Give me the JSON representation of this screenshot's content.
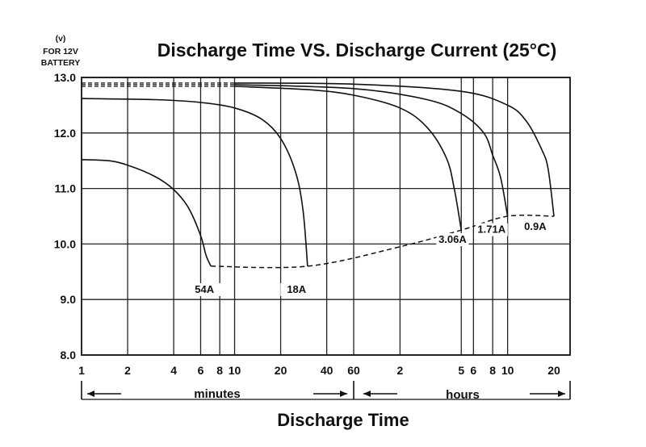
{
  "chart_data": {
    "type": "line",
    "title": "Discharge Time VS. Discharge Current (25°C)",
    "ylabel_lines": [
      "(v)",
      "FOR 12V",
      "BATTERY"
    ],
    "xlabel": "Discharge Time",
    "x_scale": "log",
    "x_unit_minutes_label": "minutes",
    "x_unit_hours_label": "hours",
    "x_ticks_minutes": [
      "1",
      "2",
      "4",
      "6",
      "8",
      "10",
      "20",
      "40",
      "60"
    ],
    "x_ticks_hours": [
      "2",
      "5",
      "6",
      "8",
      "10",
      "20"
    ],
    "y_ticks": [
      "8.0",
      "9.0",
      "10.0",
      "11.0",
      "12.0",
      "13.0"
    ],
    "ylim": [
      8.0,
      13.0
    ],
    "xlim_minutes": [
      1,
      1650
    ],
    "grid": true,
    "series": [
      {
        "name": "54A",
        "x_minutes": [
          1,
          1.5,
          2,
          3,
          4,
          5,
          6,
          6.5,
          7
        ],
        "y": [
          11.52,
          11.5,
          11.42,
          11.22,
          10.98,
          10.65,
          10.15,
          9.8,
          9.6
        ]
      },
      {
        "name": "18A",
        "x_minutes": [
          1,
          3,
          6,
          10,
          15,
          20,
          25,
          28,
          30
        ],
        "y": [
          12.62,
          12.6,
          12.55,
          12.45,
          12.25,
          11.9,
          11.3,
          10.6,
          9.6
        ]
      },
      {
        "name": "3.06A",
        "x_minutes": [
          1,
          10,
          30,
          60,
          120,
          180,
          240,
          270,
          300
        ],
        "y": [
          12.84,
          12.84,
          12.78,
          12.68,
          12.45,
          12.1,
          11.55,
          11.0,
          10.25
        ]
      },
      {
        "name": "1.71A",
        "x_minutes": [
          1,
          10,
          60,
          180,
          300,
          420,
          480,
          540,
          600
        ],
        "y": [
          12.87,
          12.87,
          12.8,
          12.6,
          12.35,
          12.0,
          11.6,
          11.2,
          10.5
        ]
      },
      {
        "name": "0.9A",
        "x_minutes": [
          1,
          10,
          60,
          300,
          600,
          800,
          1000,
          1100,
          1200
        ],
        "y": [
          12.9,
          12.9,
          12.88,
          12.75,
          12.5,
          12.2,
          11.7,
          11.35,
          10.5
        ]
      }
    ],
    "end_voltage_line": {
      "x_minutes": [
        7,
        30,
        120,
        300,
        600,
        1200
      ],
      "y": [
        9.6,
        9.6,
        9.95,
        10.25,
        10.5,
        10.5
      ]
    },
    "curve_labels": [
      "54A",
      "18A",
      "3.06A",
      "1.71A",
      "0.9A"
    ]
  }
}
